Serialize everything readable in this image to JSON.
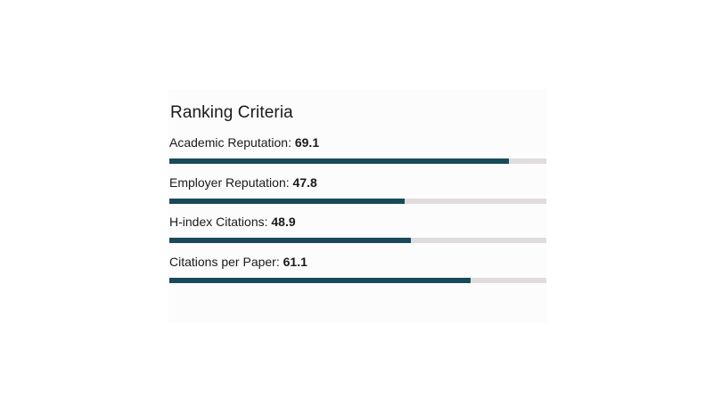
{
  "panel": {
    "title": "Ranking Criteria"
  },
  "criteria": [
    {
      "label": "Academic Reputation:",
      "score": "69.1",
      "progress": 0.9
    },
    {
      "label": "Employer Reputation:",
      "score": "47.8",
      "progress": 0.625
    },
    {
      "label": "H-index Citations:",
      "score": "48.9",
      "progress": 0.64
    },
    {
      "label": "Citations per Paper:",
      "score": "61.1",
      "progress": 0.8
    }
  ],
  "colors": {
    "bar_fill": "#1a4a5a",
    "bar_track": "#e0dcdc",
    "text": "#1a1a1a",
    "panel_bg": "#fcfcfc"
  }
}
